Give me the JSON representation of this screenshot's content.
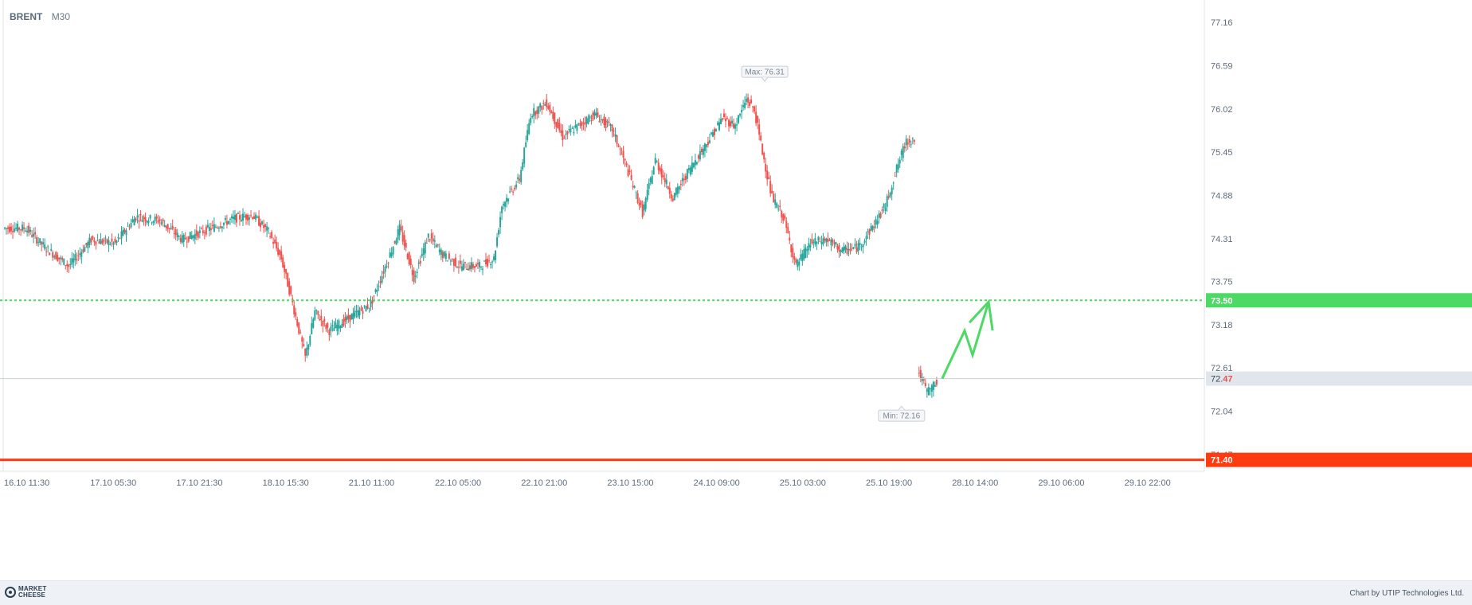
{
  "header": {
    "symbol": "BRENT",
    "timeframe": "M30"
  },
  "footer": {
    "logo_line1": "MARKET",
    "logo_line2": "CHEESE",
    "credit": "Chart by UTIP Technologies Ltd."
  },
  "colors": {
    "up": "#26a69a",
    "down": "#ef5350",
    "target_line": "#4cd964",
    "support_line": "#ff3b0f",
    "arrow": "#4cd964",
    "grid": "#e9edf1"
  },
  "chart_data": {
    "type": "candlestick",
    "symbol": "BRENT",
    "timeframe": "M30",
    "ylim": [
      70.9,
      77.3
    ],
    "y_ticks": [
      "77.16",
      "76.59",
      "76.02",
      "75.45",
      "74.88",
      "74.31",
      "73.75",
      "73.18",
      "72.61",
      "72.04",
      "71.47"
    ],
    "x_ticks": [
      "16.10 11:30",
      "17.10 05:30",
      "17.10 21:30",
      "18.10 15:30",
      "21.10 11:00",
      "22.10 05:00",
      "22.10 21:00",
      "23.10 15:00",
      "24.10 09:00",
      "25.10 03:00",
      "25.10 19:00",
      "28.10 14:00",
      "29.10 06:00",
      "29.10 22:00"
    ],
    "current_price": {
      "label_main": "72.",
      "label_tail": "47",
      "value": 72.47
    },
    "levels": [
      {
        "name": "target",
        "value": 73.5,
        "label": "73.50",
        "style": "dotted"
      },
      {
        "name": "support",
        "value": 71.4,
        "label": "71.40",
        "style": "solid"
      }
    ],
    "annotations": [
      {
        "text": "Max: 76.31",
        "x_index": 0.84,
        "value": 76.31
      },
      {
        "text": "Min: 72.16",
        "x_index": 0.104,
        "value": 72.16
      }
    ],
    "anchors": [
      [
        0,
        74.45
      ],
      [
        14,
        74.45
      ],
      [
        26,
        74.2
      ],
      [
        41,
        73.95
      ],
      [
        55,
        74.3
      ],
      [
        70,
        74.25
      ],
      [
        83,
        74.6
      ],
      [
        98,
        74.55
      ],
      [
        112,
        74.3
      ],
      [
        130,
        74.45
      ],
      [
        145,
        74.58
      ],
      [
        156,
        74.62
      ],
      [
        166,
        74.4
      ],
      [
        174,
        74.05
      ],
      [
        180,
        73.55
      ],
      [
        189,
        72.75
      ],
      [
        195,
        73.35
      ],
      [
        204,
        73.1
      ],
      [
        215,
        73.25
      ],
      [
        230,
        73.45
      ],
      [
        241,
        74.05
      ],
      [
        248,
        74.45
      ],
      [
        257,
        73.8
      ],
      [
        266,
        74.35
      ],
      [
        275,
        74.1
      ],
      [
        286,
        73.95
      ],
      [
        298,
        73.95
      ],
      [
        307,
        74.05
      ],
      [
        312,
        74.75
      ],
      [
        323,
        75.1
      ],
      [
        330,
        75.95
      ],
      [
        340,
        76.1
      ],
      [
        350,
        75.65
      ],
      [
        370,
        75.95
      ],
      [
        381,
        75.75
      ],
      [
        390,
        75.25
      ],
      [
        400,
        74.65
      ],
      [
        408,
        75.35
      ],
      [
        419,
        74.85
      ],
      [
        430,
        75.25
      ],
      [
        441,
        75.6
      ],
      [
        450,
        75.9
      ],
      [
        458,
        75.8
      ],
      [
        465,
        76.15
      ],
      [
        470,
        76.0
      ],
      [
        475,
        75.45
      ],
      [
        481,
        74.85
      ],
      [
        488,
        74.6
      ],
      [
        496,
        73.95
      ],
      [
        505,
        74.25
      ],
      [
        515,
        74.3
      ],
      [
        525,
        74.15
      ],
      [
        535,
        74.2
      ],
      [
        545,
        74.5
      ],
      [
        552,
        74.75
      ],
      [
        560,
        75.3
      ],
      [
        565,
        75.6
      ],
      [
        570,
        75.62
      ]
    ],
    "anchors2": [
      [
        572,
        72.58
      ],
      [
        578,
        72.3
      ],
      [
        584,
        72.42
      ]
    ],
    "arrow": [
      [
        587,
        72.47
      ],
      [
        601,
        73.1
      ],
      [
        606,
        72.78
      ],
      [
        616,
        73.48
      ]
    ],
    "total_bars_to_edge": 750
  }
}
